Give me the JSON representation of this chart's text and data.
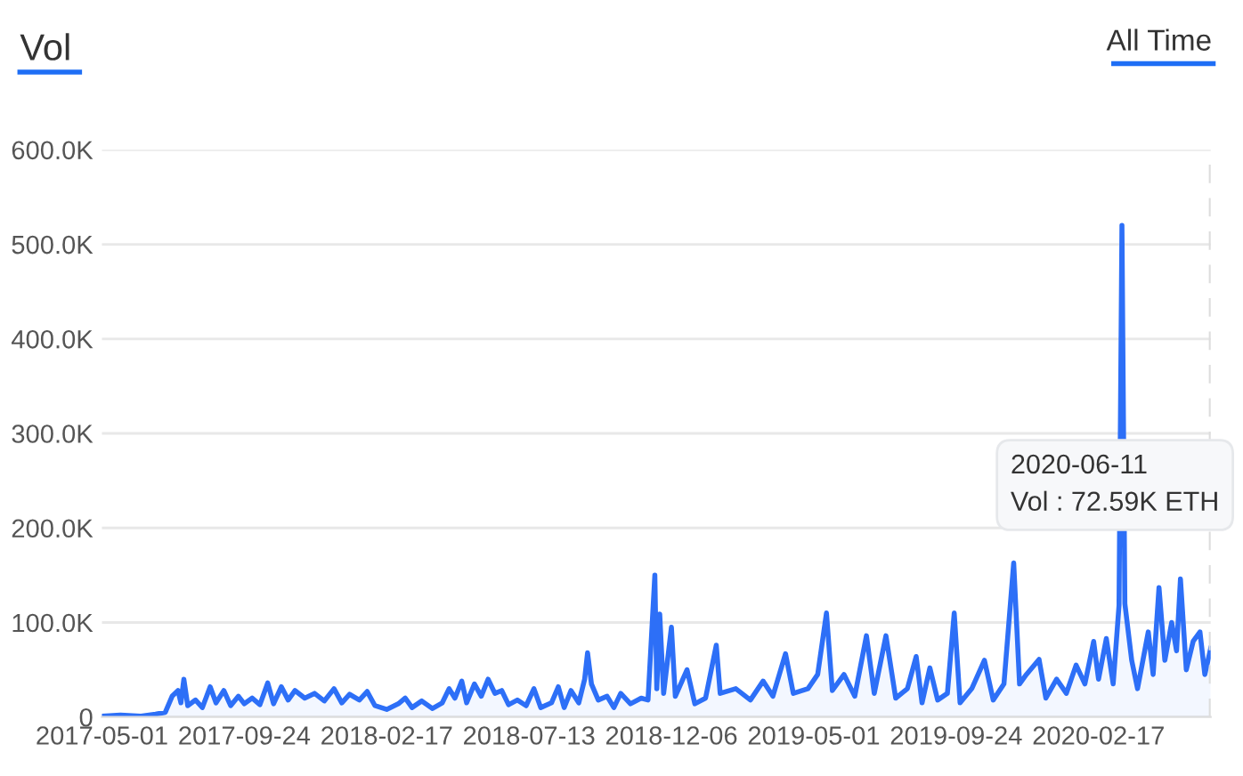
{
  "chart_data": {
    "type": "area",
    "title": "Vol",
    "annotations": [
      "All Time",
      "2020-06-11\nVol : 72.59K ETH"
    ],
    "x": [
      "2017-05-01",
      "2017-05-20",
      "2017-06-10",
      "2017-06-25",
      "2017-07-05",
      "2017-07-12",
      "2017-07-18",
      "2017-07-21",
      "2017-07-24",
      "2017-07-28",
      "2017-08-05",
      "2017-08-12",
      "2017-08-20",
      "2017-08-26",
      "2017-09-03",
      "2017-09-10",
      "2017-09-18",
      "2017-09-24",
      "2017-10-02",
      "2017-10-10",
      "2017-10-18",
      "2017-10-24",
      "2017-11-01",
      "2017-11-08",
      "2017-11-15",
      "2017-11-25",
      "2017-12-05",
      "2017-12-15",
      "2017-12-25",
      "2018-01-02",
      "2018-01-10",
      "2018-01-20",
      "2018-01-28",
      "2018-02-05",
      "2018-02-17",
      "2018-03-01",
      "2018-03-08",
      "2018-03-15",
      "2018-03-25",
      "2018-04-05",
      "2018-04-15",
      "2018-04-22",
      "2018-04-28",
      "2018-05-05",
      "2018-05-10",
      "2018-05-18",
      "2018-05-25",
      "2018-06-01",
      "2018-06-08",
      "2018-06-15",
      "2018-06-22",
      "2018-07-01",
      "2018-07-10",
      "2018-07-18",
      "2018-07-25",
      "2018-08-05",
      "2018-08-12",
      "2018-08-18",
      "2018-08-25",
      "2018-09-02",
      "2018-09-08",
      "2018-09-11",
      "2018-09-15",
      "2018-09-22",
      "2018-10-01",
      "2018-10-08",
      "2018-10-15",
      "2018-10-25",
      "2018-11-05",
      "2018-11-12",
      "2018-11-19",
      "2018-11-21",
      "2018-11-24",
      "2018-11-28",
      "2018-12-06",
      "2018-12-10",
      "2018-12-22",
      "2018-12-30",
      "2019-01-10",
      "2019-01-21",
      "2019-01-25",
      "2019-02-10",
      "2019-02-25",
      "2019-03-10",
      "2019-03-20",
      "2019-04-02",
      "2019-04-10",
      "2019-04-25",
      "2019-05-05",
      "2019-05-14",
      "2019-05-20",
      "2019-06-01",
      "2019-06-12",
      "2019-06-24",
      "2019-07-02",
      "2019-07-14",
      "2019-07-24",
      "2019-08-05",
      "2019-08-14",
      "2019-08-20",
      "2019-08-28",
      "2019-09-05",
      "2019-09-15",
      "2019-09-22",
      "2019-09-28",
      "2019-10-10",
      "2019-10-23",
      "2019-11-01",
      "2019-11-12",
      "2019-11-22",
      "2019-11-28",
      "2019-12-05",
      "2019-12-18",
      "2019-12-25",
      "2020-01-05",
      "2020-01-15",
      "2020-01-25",
      "2020-02-03",
      "2020-02-12",
      "2020-02-17",
      "2020-02-25",
      "2020-03-03",
      "2020-03-09",
      "2020-03-12",
      "2020-03-15",
      "2020-03-22",
      "2020-03-28",
      "2020-04-08",
      "2020-04-13",
      "2020-04-19",
      "2020-04-25",
      "2020-05-02",
      "2020-05-07",
      "2020-05-11",
      "2020-05-17",
      "2020-05-24",
      "2020-05-31",
      "2020-06-05",
      "2020-06-11"
    ],
    "series": [
      {
        "color": "#2d6ff7",
        "values": [
          1000,
          2000,
          1000,
          3000,
          5000,
          22000,
          28000,
          15000,
          40000,
          12000,
          18000,
          10000,
          32000,
          15000,
          28000,
          12000,
          22000,
          14000,
          20000,
          13000,
          36000,
          14000,
          32000,
          18000,
          28000,
          20000,
          25000,
          17000,
          30000,
          15000,
          24000,
          18000,
          27000,
          12000,
          8000,
          14000,
          20000,
          10000,
          17000,
          9000,
          15000,
          30000,
          20000,
          38000,
          15000,
          35000,
          22000,
          40000,
          25000,
          28000,
          13000,
          18000,
          12000,
          30000,
          10000,
          15000,
          32000,
          10000,
          28000,
          15000,
          40000,
          68000,
          35000,
          18000,
          22000,
          10000,
          25000,
          14000,
          20000,
          18000,
          150000,
          30000,
          109000,
          25000,
          95000,
          22000,
          50000,
          14000,
          20000,
          76000,
          25000,
          30000,
          18000,
          38000,
          22000,
          67000,
          25000,
          30000,
          45000,
          110000,
          28000,
          45000,
          22000,
          86000,
          25000,
          86000,
          20000,
          30000,
          64000,
          15000,
          52000,
          18000,
          25000,
          110000,
          15000,
          30000,
          60000,
          18000,
          35000,
          163000,
          35000,
          45000,
          61000,
          20000,
          40000,
          25000,
          55000,
          35000,
          80000,
          40000,
          83000,
          35000,
          118000,
          520000,
          120000,
          60000,
          30000,
          90000,
          45000,
          137000,
          60000,
          100000,
          70000,
          146000,
          50000,
          80000,
          90000,
          45000,
          72590
        ]
      }
    ],
    "xlim": [
      "2017-05-01",
      "2020-06-11"
    ],
    "xticks": [
      {
        "value": "2017-05-01",
        "label": "2017-05-01"
      },
      {
        "value": "2017-09-24",
        "label": "2017-09-24"
      },
      {
        "value": "2018-02-17",
        "label": "2018-02-17"
      },
      {
        "value": "2018-07-13",
        "label": "2018-07-13"
      },
      {
        "value": "2018-12-06",
        "label": "2018-12-06"
      },
      {
        "value": "2019-05-01",
        "label": "2019-05-01"
      },
      {
        "value": "2019-09-24",
        "label": "2019-09-24"
      },
      {
        "value": "2020-02-17",
        "label": "2020-02-17"
      }
    ],
    "ylim": [
      0,
      600000
    ],
    "yticks": [
      0,
      {
        "value": 100000,
        "label": "100.0K"
      },
      {
        "value": 200000,
        "label": "200.0K"
      },
      {
        "value": 300000,
        "label": "300.0K"
      },
      {
        "value": 400000,
        "label": "400.0K"
      },
      {
        "value": 500000,
        "label": "500.0K"
      },
      {
        "value": 600000,
        "label": "600.0K"
      }
    ],
    "ref_lines": [
      {
        "axis": "x",
        "value": "2020-06-11",
        "color": "#dddddd",
        "line_style": "dashed"
      }
    ],
    "grid": "y"
  }
}
